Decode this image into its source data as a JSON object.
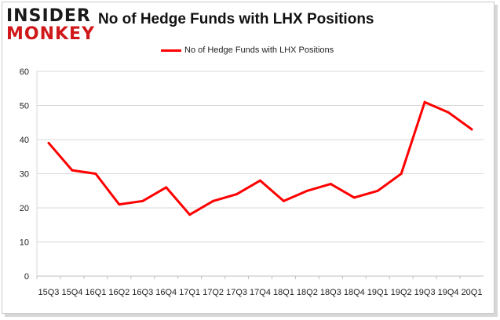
{
  "logo": {
    "line1": "INSIDER",
    "line2": "MONKEY"
  },
  "colors": {
    "series": "#ff0000",
    "grid": "#d9d9d9",
    "logo_red": "#d0181b"
  },
  "chart_data": {
    "type": "line",
    "title": "No of Hedge Funds with LHX Positions",
    "legend_position": "top",
    "grid": true,
    "xlabel": "",
    "ylabel": "",
    "ylim": [
      0,
      60
    ],
    "yticks": [
      0,
      10,
      20,
      30,
      40,
      50,
      60
    ],
    "x": [
      "15Q3",
      "15Q4",
      "16Q1",
      "16Q2",
      "16Q3",
      "16Q4",
      "17Q1",
      "17Q2",
      "17Q3",
      "17Q4",
      "18Q1",
      "18Q2",
      "18Q3",
      "18Q4",
      "19Q1",
      "19Q2",
      "19Q3",
      "19Q4",
      "20Q1"
    ],
    "series": [
      {
        "name": "No of Hedge Funds with LHX Positions",
        "values": [
          39,
          31,
          30,
          21,
          22,
          26,
          18,
          22,
          24,
          28,
          22,
          25,
          27,
          23,
          25,
          30,
          51,
          48,
          43
        ]
      }
    ]
  }
}
